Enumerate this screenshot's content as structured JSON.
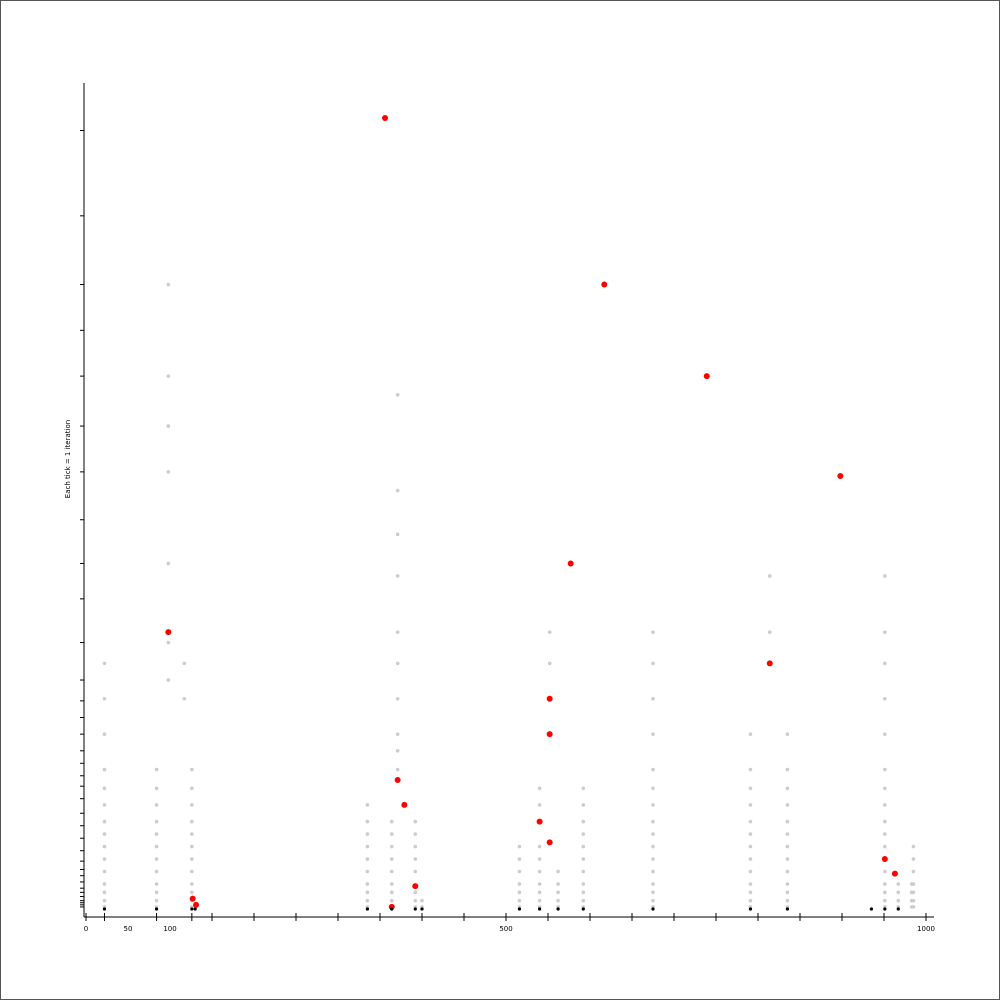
{
  "chart_data": {
    "type": "scatter",
    "title": "",
    "xlabel": "",
    "ylabel": "Each tick = 1 iteration",
    "xlim": [
      0,
      1000
    ],
    "ylim": [
      0,
      380
    ],
    "grid": false,
    "x_tick_labels": [
      {
        "value": 0,
        "label": "0"
      },
      {
        "value": 50,
        "label": "50"
      },
      {
        "value": 100,
        "label": "100"
      },
      {
        "value": 500,
        "label": "500"
      },
      {
        "value": 1000,
        "label": "1000"
      }
    ],
    "x_minor_ticks": [
      0,
      22,
      84,
      126,
      150,
      200,
      250,
      300,
      350,
      400,
      450,
      500,
      550,
      600,
      650,
      700,
      750,
      800,
      850,
      900,
      950,
      1000
    ],
    "y_ticks": [
      1,
      2,
      3,
      4,
      6,
      8,
      10,
      13,
      16,
      19,
      23,
      28,
      34,
      40,
      46,
      53,
      59,
      64,
      70,
      76,
      84,
      92,
      100,
      110,
      128,
      149,
      166,
      187,
      210,
      232,
      256,
      278,
      300,
      333,
      374
    ],
    "series": [
      {
        "role": "history",
        "color": "#cccccc",
        "points": [
          [
            22,
            1
          ],
          [
            22,
            4
          ],
          [
            22,
            8
          ],
          [
            22,
            12
          ],
          [
            22,
            18
          ],
          [
            22,
            24
          ],
          [
            22,
            30
          ],
          [
            22,
            36
          ],
          [
            22,
            42
          ],
          [
            22,
            50
          ],
          [
            22,
            58
          ],
          [
            22,
            67
          ],
          [
            22,
            84
          ],
          [
            22,
            101
          ],
          [
            22,
            118
          ],
          [
            84,
            1
          ],
          [
            84,
            4
          ],
          [
            84,
            8
          ],
          [
            84,
            12
          ],
          [
            84,
            18
          ],
          [
            84,
            24
          ],
          [
            84,
            30
          ],
          [
            84,
            36
          ],
          [
            84,
            42
          ],
          [
            84,
            50
          ],
          [
            84,
            58
          ],
          [
            84,
            67
          ],
          [
            98,
            110
          ],
          [
            98,
            128
          ],
          [
            98,
            166
          ],
          [
            98,
            210
          ],
          [
            98,
            232
          ],
          [
            98,
            256
          ],
          [
            98,
            300
          ],
          [
            117,
            101
          ],
          [
            117,
            118
          ],
          [
            126,
            1
          ],
          [
            126,
            4
          ],
          [
            126,
            8
          ],
          [
            126,
            12
          ],
          [
            126,
            18
          ],
          [
            126,
            24
          ],
          [
            126,
            30
          ],
          [
            126,
            36
          ],
          [
            126,
            42
          ],
          [
            126,
            50
          ],
          [
            126,
            58
          ],
          [
            126,
            67
          ],
          [
            335,
            1
          ],
          [
            335,
            4
          ],
          [
            335,
            8
          ],
          [
            335,
            12
          ],
          [
            335,
            18
          ],
          [
            335,
            24
          ],
          [
            335,
            30
          ],
          [
            335,
            36
          ],
          [
            335,
            42
          ],
          [
            335,
            50
          ],
          [
            364,
            1
          ],
          [
            364,
            4
          ],
          [
            364,
            8
          ],
          [
            364,
            12
          ],
          [
            364,
            18
          ],
          [
            364,
            24
          ],
          [
            364,
            30
          ],
          [
            364,
            36
          ],
          [
            364,
            42
          ],
          [
            371,
            67
          ],
          [
            371,
            76
          ],
          [
            371,
            84
          ],
          [
            371,
            101
          ],
          [
            371,
            118
          ],
          [
            371,
            133
          ],
          [
            371,
            160
          ],
          [
            371,
            180
          ],
          [
            371,
            201
          ],
          [
            371,
            247
          ],
          [
            392,
            1
          ],
          [
            392,
            4
          ],
          [
            392,
            8
          ],
          [
            392,
            18
          ],
          [
            392,
            24
          ],
          [
            392,
            30
          ],
          [
            392,
            36
          ],
          [
            392,
            42
          ],
          [
            400,
            1
          ],
          [
            400,
            4
          ],
          [
            516,
            1
          ],
          [
            516,
            4
          ],
          [
            516,
            8
          ],
          [
            516,
            12
          ],
          [
            516,
            18
          ],
          [
            516,
            24
          ],
          [
            516,
            30
          ],
          [
            540,
            1
          ],
          [
            540,
            4
          ],
          [
            540,
            8
          ],
          [
            540,
            12
          ],
          [
            540,
            18
          ],
          [
            540,
            24
          ],
          [
            540,
            30
          ],
          [
            540,
            42
          ],
          [
            540,
            50
          ],
          [
            540,
            58
          ],
          [
            552,
            101
          ],
          [
            552,
            118
          ],
          [
            552,
            133
          ],
          [
            562,
            1
          ],
          [
            562,
            4
          ],
          [
            562,
            8
          ],
          [
            562,
            12
          ],
          [
            562,
            18
          ],
          [
            577,
            166
          ],
          [
            592,
            1
          ],
          [
            592,
            4
          ],
          [
            592,
            8
          ],
          [
            592,
            12
          ],
          [
            592,
            18
          ],
          [
            592,
            24
          ],
          [
            592,
            30
          ],
          [
            592,
            36
          ],
          [
            592,
            42
          ],
          [
            592,
            50
          ],
          [
            592,
            58
          ],
          [
            675,
            1
          ],
          [
            675,
            4
          ],
          [
            675,
            8
          ],
          [
            675,
            12
          ],
          [
            675,
            18
          ],
          [
            675,
            24
          ],
          [
            675,
            30
          ],
          [
            675,
            36
          ],
          [
            675,
            42
          ],
          [
            675,
            50
          ],
          [
            675,
            58
          ],
          [
            675,
            67
          ],
          [
            675,
            84
          ],
          [
            675,
            101
          ],
          [
            675,
            118
          ],
          [
            675,
            133
          ],
          [
            791,
            1
          ],
          [
            791,
            4
          ],
          [
            791,
            8
          ],
          [
            791,
            12
          ],
          [
            791,
            18
          ],
          [
            791,
            24
          ],
          [
            791,
            30
          ],
          [
            791,
            36
          ],
          [
            791,
            42
          ],
          [
            791,
            50
          ],
          [
            791,
            58
          ],
          [
            791,
            67
          ],
          [
            791,
            84
          ],
          [
            814,
            133
          ],
          [
            814,
            160
          ],
          [
            835,
            1
          ],
          [
            835,
            4
          ],
          [
            835,
            8
          ],
          [
            835,
            12
          ],
          [
            835,
            18
          ],
          [
            835,
            24
          ],
          [
            835,
            30
          ],
          [
            835,
            36
          ],
          [
            835,
            42
          ],
          [
            835,
            50
          ],
          [
            835,
            58
          ],
          [
            835,
            67
          ],
          [
            835,
            84
          ],
          [
            985,
            1
          ],
          [
            985,
            4
          ],
          [
            985,
            8
          ],
          [
            985,
            12
          ],
          [
            985,
            18
          ],
          [
            985,
            24
          ],
          [
            985,
            30
          ],
          [
            951,
            1
          ],
          [
            951,
            4
          ],
          [
            951,
            8
          ],
          [
            951,
            12
          ],
          [
            951,
            18
          ],
          [
            951,
            24
          ],
          [
            951,
            30
          ],
          [
            951,
            36
          ],
          [
            951,
            42
          ],
          [
            951,
            50
          ],
          [
            951,
            58
          ],
          [
            951,
            67
          ],
          [
            951,
            84
          ],
          [
            951,
            101
          ],
          [
            951,
            118
          ],
          [
            951,
            133
          ],
          [
            951,
            160
          ],
          [
            967,
            1
          ],
          [
            967,
            4
          ],
          [
            967,
            8
          ],
          [
            967,
            12
          ],
          [
            983,
            1
          ],
          [
            983,
            4
          ],
          [
            983,
            8
          ],
          [
            983,
            12
          ]
        ]
      },
      {
        "role": "current",
        "color": "#ff0000",
        "points": [
          [
            98,
            133
          ],
          [
            127,
            5
          ],
          [
            131,
            2
          ],
          [
            356,
            380
          ],
          [
            364,
            1
          ],
          [
            371,
            62
          ],
          [
            379,
            50
          ],
          [
            392,
            11
          ],
          [
            540,
            42
          ],
          [
            552,
            32
          ],
          [
            552,
            84
          ],
          [
            552,
            101
          ],
          [
            577,
            166
          ],
          [
            617,
            300
          ],
          [
            739,
            256
          ],
          [
            814,
            118
          ],
          [
            898,
            208
          ],
          [
            951,
            24
          ],
          [
            963,
            17
          ]
        ]
      },
      {
        "role": "baseline",
        "color": "#000000",
        "points": [
          [
            22,
            0
          ],
          [
            84,
            0
          ],
          [
            126,
            0
          ],
          [
            130,
            0
          ],
          [
            335,
            0
          ],
          [
            364,
            0
          ],
          [
            392,
            0
          ],
          [
            400,
            0
          ],
          [
            516,
            0
          ],
          [
            540,
            0
          ],
          [
            562,
            0
          ],
          [
            592,
            0
          ],
          [
            675,
            0
          ],
          [
            791,
            0
          ],
          [
            835,
            0
          ],
          [
            935,
            0
          ],
          [
            951,
            0
          ],
          [
            967,
            0
          ]
        ]
      }
    ]
  }
}
